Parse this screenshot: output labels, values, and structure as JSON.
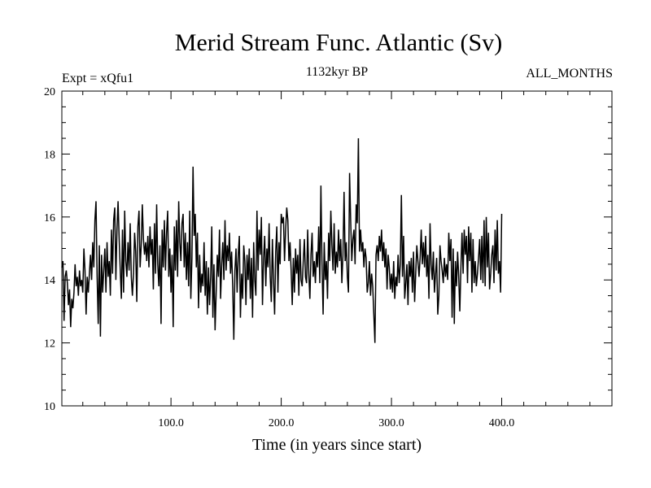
{
  "chart_data": {
    "type": "line",
    "title": "Merid Stream Func. Atlantic (Sv)",
    "subtitle_left": "Expt = xQfu1",
    "subtitle_center": "1132kyr BP",
    "subtitle_right": "ALL_MONTHS",
    "xlabel": "Time (in years since start)",
    "ylabel": "",
    "xlim": [
      1,
      500
    ],
    "ylim": [
      10,
      20
    ],
    "x_ticks": [
      100,
      200,
      300,
      400
    ],
    "x_tick_labels": [
      "100.0",
      "200.0",
      "300.0",
      "400.0"
    ],
    "y_ticks": [
      10,
      12,
      14,
      16,
      18,
      20
    ],
    "y_tick_labels": [
      "10",
      "12",
      "14",
      "16",
      "18",
      "20"
    ],
    "grid": false,
    "legend": "none",
    "series": [
      {
        "x_start": 1,
        "x_step": 1,
        "values": [
          14.4,
          14.6,
          12.7,
          14.1,
          14.3,
          13.9,
          13.2,
          13.7,
          12.5,
          13.4,
          13.1,
          13.6,
          14.5,
          13.8,
          14.1,
          13.5,
          14.3,
          13.8,
          14.0,
          13.6,
          15.0,
          14.3,
          12.9,
          14.1,
          13.6,
          14.2,
          14.8,
          14.0,
          15.2,
          14.4,
          15.9,
          16.5,
          14.1,
          12.6,
          15.1,
          12.2,
          14.8,
          13.6,
          14.3,
          15.0,
          13.6,
          15.2,
          14.1,
          14.6,
          13.5,
          15.6,
          14.2,
          15.9,
          16.3,
          14.0,
          15.6,
          16.5,
          15.3,
          14.3,
          13.4,
          15.6,
          13.6,
          16.2,
          14.6,
          14.1,
          15.2,
          14.3,
          15.8,
          14.1,
          13.5,
          14.2,
          15.5,
          14.9,
          13.3,
          15.7,
          16.2,
          14.4,
          15.1,
          16.4,
          15.3,
          14.8,
          15.2,
          14.6,
          15.4,
          14.4,
          15.7,
          14.8,
          15.3,
          13.7,
          15.8,
          14.2,
          16.4,
          14.5,
          13.8,
          15.1,
          12.6,
          15.6,
          14.4,
          15.9,
          14.3,
          15.5,
          16.2,
          14.1,
          15.0,
          13.6,
          14.8,
          12.5,
          15.7,
          14.3,
          15.9,
          14.1,
          16.5,
          15.2,
          14.6,
          15.8,
          16.1,
          14.4,
          15.5,
          14.0,
          15.2,
          13.8,
          16.2,
          13.4,
          14.7,
          17.6,
          15.4,
          16.1,
          14.4,
          15.5,
          13.1,
          14.8,
          13.6,
          14.2,
          13.8,
          15.2,
          13.5,
          14.6,
          12.9,
          14.4,
          13.2,
          14.1,
          15.7,
          12.8,
          14.5,
          12.4,
          13.6,
          14.8,
          14.1,
          15.6,
          13.4,
          14.5,
          15.2,
          14.0,
          15.9,
          14.3,
          15.1,
          14.6,
          15.5,
          14.2,
          14.9,
          13.8,
          12.1,
          14.3,
          15.0,
          13.6,
          14.8,
          15.4,
          12.8,
          14.2,
          13.4,
          15.1,
          14.6,
          13.2,
          14.8,
          14.0,
          15.0,
          13.4,
          14.7,
          12.8,
          15.2,
          14.0,
          13.5,
          16.2,
          14.3,
          15.6,
          14.8,
          16.0,
          13.2,
          14.7,
          15.4,
          13.8,
          15.0,
          14.4,
          15.8,
          14.1,
          13.3,
          15.3,
          14.0,
          12.9,
          14.9,
          15.7,
          13.6,
          15.2,
          14.5,
          16.1,
          15.8,
          16.0,
          14.6,
          15.6,
          16.3,
          15.9,
          14.6,
          15.2,
          14.3,
          13.2,
          14.7,
          13.6,
          15.0,
          14.2,
          14.8,
          13.5,
          15.3,
          14.0,
          13.8,
          14.6,
          15.3,
          14.1,
          13.9,
          15.6,
          14.2,
          13.4,
          14.8,
          15.5,
          14.1,
          14.6,
          13.9,
          14.9,
          14.4,
          15.7,
          13.9,
          17.0,
          14.5,
          12.9,
          15.2,
          14.0,
          14.6,
          13.4,
          15.5,
          14.6,
          16.2,
          15.1,
          14.3,
          15.8,
          14.2,
          14.9,
          14.4,
          15.6,
          14.6,
          15.3,
          13.9,
          14.8,
          16.8,
          14.6,
          15.2,
          14.1,
          13.6,
          17.4,
          15.9,
          14.6,
          15.3,
          15.6,
          14.5,
          16.4,
          15.8,
          18.5,
          14.9,
          15.6,
          14.9,
          15.2,
          14.4,
          15.0,
          14.7,
          13.6,
          13.9,
          14.6,
          13.5,
          14.2,
          13.8,
          12.9,
          12.0,
          14.8,
          15.1,
          14.6,
          15.4,
          14.9,
          15.6,
          14.6,
          15.2,
          14.4,
          15.0,
          13.7,
          14.8,
          14.4,
          13.7,
          14.2,
          13.6,
          14.6,
          13.4,
          14.1,
          13.8,
          14.8,
          13.9,
          14.5,
          16.7,
          14.1,
          15.4,
          13.4,
          13.9,
          14.5,
          13.2,
          14.6,
          14.1,
          14.7,
          13.6,
          14.9,
          13.3,
          14.2,
          15.1,
          14.6,
          14.1,
          14.7,
          15.6,
          14.5,
          15.2,
          14.4,
          15.4,
          14.1,
          14.8,
          13.4,
          15.8,
          14.5,
          14.0,
          14.9,
          13.6,
          14.2,
          14.7,
          12.9,
          13.5,
          15.1,
          14.6,
          14.3,
          13.9,
          14.7,
          14.1,
          14.5,
          14.0,
          15.5,
          14.6,
          15.3,
          12.8,
          15.0,
          12.6,
          14.6,
          13.8,
          14.9,
          14.1,
          13.0,
          14.4,
          15.5,
          14.2,
          15.6,
          14.8,
          15.4,
          13.9,
          15.7,
          14.6,
          15.5,
          13.6,
          15.3,
          13.9,
          14.6,
          13.8,
          14.2,
          14.7,
          15.3,
          14.0,
          15.4,
          13.9,
          15.9,
          13.8,
          16.0,
          14.4,
          15.5,
          13.7,
          14.2,
          14.8,
          15.1,
          13.9,
          15.6,
          14.3,
          15.9,
          14.2,
          14.6,
          13.6,
          16.1
        ]
      }
    ]
  }
}
